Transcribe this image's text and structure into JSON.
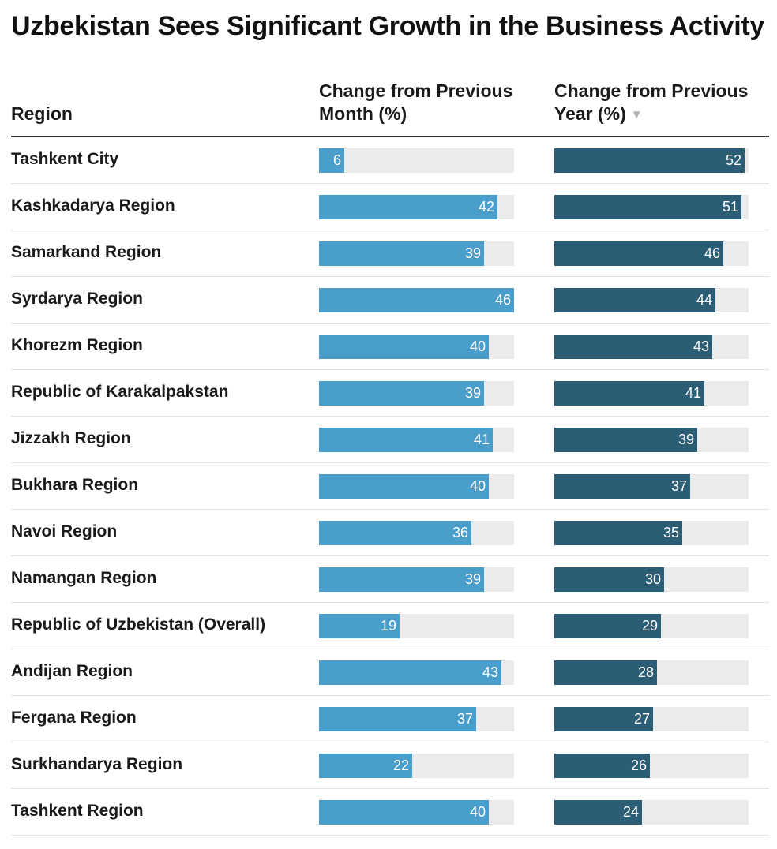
{
  "title": "Uzbekistan Sees Significant Growth in the Business Activity",
  "columns": {
    "region": "Region",
    "monthly": "Change from Previous Month (%)",
    "yearly": "Change from Previous Year (%)"
  },
  "sort_indicator": "▼",
  "colors": {
    "monthly": "#4a9ecb",
    "yearly": "#2b5d75",
    "track": "#ebebeb"
  },
  "chart_data": {
    "type": "table",
    "title": "Uzbekistan Sees Significant Growth in the Business Activity",
    "columns": [
      "Region",
      "Change from Previous Month (%)",
      "Change from Previous Year (%)"
    ],
    "sorted_by": "Change from Previous Year (%)",
    "sort_order": "descending",
    "scale_max": {
      "monthly": 46,
      "yearly": 53
    },
    "rows": [
      {
        "region": "Tashkent City",
        "monthly": 6,
        "yearly": 52
      },
      {
        "region": "Kashkadarya Region",
        "monthly": 42,
        "yearly": 51
      },
      {
        "region": "Samarkand Region",
        "monthly": 39,
        "yearly": 46
      },
      {
        "region": "Syrdarya Region",
        "monthly": 46,
        "yearly": 44
      },
      {
        "region": "Khorezm Region",
        "monthly": 40,
        "yearly": 43
      },
      {
        "region": "Republic of Karakalpakstan",
        "monthly": 39,
        "yearly": 41
      },
      {
        "region": "Jizzakh Region",
        "monthly": 41,
        "yearly": 39
      },
      {
        "region": "Bukhara Region",
        "monthly": 40,
        "yearly": 37
      },
      {
        "region": "Navoi Region",
        "monthly": 36,
        "yearly": 35
      },
      {
        "region": "Namangan Region",
        "monthly": 39,
        "yearly": 30
      },
      {
        "region": "Republic of Uzbekistan (Overall)",
        "monthly": 19,
        "yearly": 29
      },
      {
        "region": "Andijan Region",
        "monthly": 43,
        "yearly": 28
      },
      {
        "region": "Fergana Region",
        "monthly": 37,
        "yearly": 27
      },
      {
        "region": "Surkhandarya Region",
        "monthly": 22,
        "yearly": 26
      },
      {
        "region": "Tashkent Region",
        "monthly": 40,
        "yearly": 24
      }
    ]
  }
}
